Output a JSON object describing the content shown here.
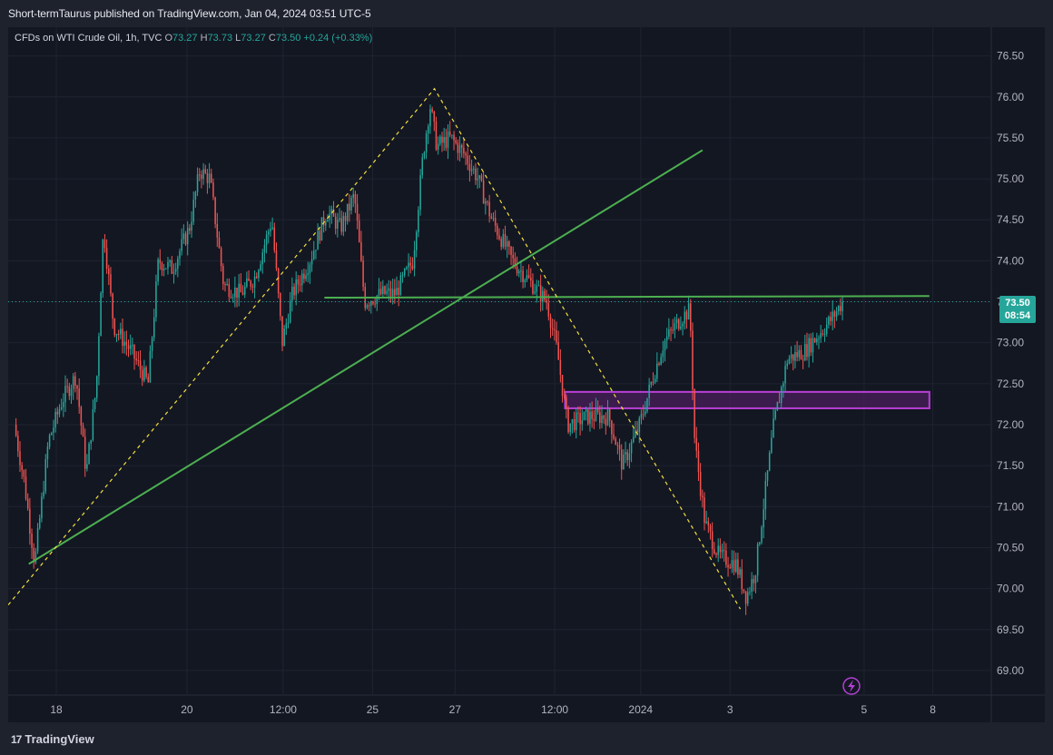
{
  "header": {
    "published_by": "Short-termTaurus published on TradingView.com, Jan 04, 2024 03:51 UTC-5"
  },
  "legend": {
    "symbol": "CFDs on WTI Crude Oil, 1h, TVC",
    "o_label": "O",
    "o_value": "73.27",
    "h_label": "H",
    "h_value": "73.73",
    "l_label": "L",
    "l_value": "73.27",
    "c_label": "C",
    "c_value": "73.50",
    "change": "+0.24 (+0.33%)"
  },
  "price_badge": {
    "price": "73.50",
    "countdown": "08:54"
  },
  "footer": {
    "brand": "TradingView",
    "logo_glyph": "17"
  },
  "colors": {
    "up": "#26a69a",
    "down": "#ef5350",
    "trendline": "#4caf50",
    "dashed": "#f5e03c",
    "zone_fill": "#4a1f5c",
    "zone_border": "#b83fd6",
    "background": "#131722"
  },
  "icons": {
    "flash": "lightning-bolt-icon",
    "logo": "tradingview-logo-icon"
  },
  "chart_data": {
    "type": "candlestick",
    "interval": "1h",
    "y_ticks": [
      "76.50",
      "76.00",
      "75.50",
      "75.00",
      "74.50",
      "74.00",
      "73.50",
      "73.00",
      "72.50",
      "72.00",
      "71.50",
      "71.00",
      "70.50",
      "70.00",
      "69.50",
      "69.00"
    ],
    "ylim": [
      68.7,
      76.85
    ],
    "x_ticks": [
      {
        "label": "18",
        "t": 0.6
      },
      {
        "label": "20",
        "t": 2.5
      },
      {
        "label": "12:00",
        "t": 3.9
      },
      {
        "label": "25",
        "t": 5.2
      },
      {
        "label": "27",
        "t": 6.4
      },
      {
        "label": "12:00",
        "t": 7.85
      },
      {
        "label": "2024",
        "t": 9.1
      },
      {
        "label": "3",
        "t": 10.4
      },
      {
        "label": "5",
        "t": 12.35
      },
      {
        "label": "8",
        "t": 13.35
      }
    ],
    "xlim": [
      -0.1,
      14.2
    ],
    "price_path": [
      [
        0.0,
        72.0
      ],
      [
        0.15,
        71.3
      ],
      [
        0.3,
        70.3
      ],
      [
        0.5,
        71.8
      ],
      [
        0.7,
        72.3
      ],
      [
        0.9,
        72.6
      ],
      [
        1.05,
        71.4
      ],
      [
        1.2,
        72.5
      ],
      [
        1.3,
        74.4
      ],
      [
        1.45,
        73.2
      ],
      [
        1.7,
        72.9
      ],
      [
        1.95,
        72.5
      ],
      [
        2.1,
        74.0
      ],
      [
        2.3,
        73.9
      ],
      [
        2.55,
        74.4
      ],
      [
        2.7,
        75.1
      ],
      [
        2.85,
        75.0
      ],
      [
        3.05,
        73.7
      ],
      [
        3.3,
        73.6
      ],
      [
        3.5,
        73.8
      ],
      [
        3.75,
        74.5
      ],
      [
        3.9,
        73.0
      ],
      [
        4.05,
        73.6
      ],
      [
        4.3,
        74.0
      ],
      [
        4.55,
        74.6
      ],
      [
        4.75,
        74.4
      ],
      [
        4.95,
        74.8
      ],
      [
        5.1,
        73.5
      ],
      [
        5.35,
        73.6
      ],
      [
        5.55,
        73.6
      ],
      [
        5.8,
        74.0
      ],
      [
        5.95,
        75.3
      ],
      [
        6.05,
        75.9
      ],
      [
        6.15,
        75.4
      ],
      [
        6.35,
        75.5
      ],
      [
        6.55,
        75.3
      ],
      [
        6.75,
        75.0
      ],
      [
        6.95,
        74.5
      ],
      [
        7.25,
        74.0
      ],
      [
        7.55,
        73.7
      ],
      [
        7.75,
        73.5
      ],
      [
        7.9,
        72.9
      ],
      [
        8.05,
        72.0
      ],
      [
        8.35,
        72.1
      ],
      [
        8.65,
        72.1
      ],
      [
        8.85,
        71.5
      ],
      [
        9.1,
        72.0
      ],
      [
        9.3,
        72.6
      ],
      [
        9.45,
        73.0
      ],
      [
        9.7,
        73.3
      ],
      [
        9.83,
        73.4
      ],
      [
        9.9,
        71.8
      ],
      [
        10.05,
        70.8
      ],
      [
        10.25,
        70.4
      ],
      [
        10.5,
        70.3
      ],
      [
        10.65,
        69.9
      ],
      [
        10.78,
        70.2
      ],
      [
        10.9,
        71.0
      ],
      [
        11.05,
        72.0
      ],
      [
        11.25,
        72.8
      ],
      [
        11.5,
        72.9
      ],
      [
        11.7,
        73.1
      ],
      [
        11.9,
        73.3
      ],
      [
        12.05,
        73.5
      ]
    ],
    "trendlines": [
      {
        "style": "solid",
        "x1": 0.2,
        "y1": 70.3,
        "x2": 10.0,
        "y2": 75.35
      },
      {
        "style": "solid",
        "x1": 4.5,
        "y1": 73.55,
        "x2": 13.3,
        "y2": 73.57
      }
    ],
    "dashed_lines": [
      [
        [
          -0.1,
          69.8
        ],
        [
          6.1,
          76.1
        ],
        [
          10.55,
          69.75
        ]
      ]
    ],
    "zone": {
      "x1": 8.0,
      "x2": 13.3,
      "y_low": 72.2,
      "y_high": 72.4
    },
    "last_price": 73.5
  }
}
